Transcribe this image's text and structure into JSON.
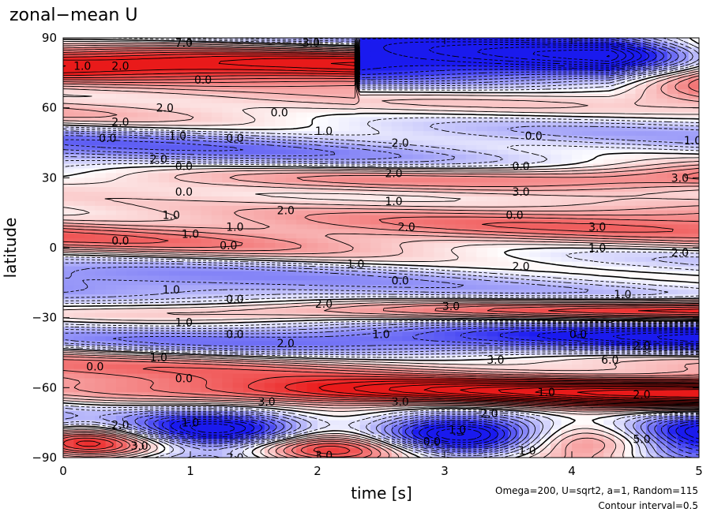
{
  "chart_data": {
    "type": "heatmap",
    "title": "zonal−mean U",
    "xlabel": "time [s]",
    "ylabel": "latitude",
    "xlim": [
      0,
      5
    ],
    "ylim": [
      -90,
      90
    ],
    "x_ticks": [
      "0",
      "1",
      "2",
      "3",
      "4",
      "5"
    ],
    "y_ticks": [
      "90",
      "60",
      "30",
      "0",
      "−30",
      "−60",
      "−90"
    ],
    "x_tick_values": [
      0,
      1,
      2,
      3,
      4,
      5
    ],
    "y_tick_values": [
      90,
      60,
      30,
      0,
      -30,
      -60,
      -90
    ],
    "annotation_params": "Omega=200, U=sqrt2, a=1, Random=115",
    "annotation_interval": "Contour interval=0.5",
    "contour_interval": 0.5,
    "colors": {
      "positive": "#e8202a",
      "negative": "#1a1aee",
      "zero": "#ffffff"
    },
    "contour_labels": [
      {
        "text": "1.0",
        "t": 0.15,
        "lat": 78
      },
      {
        "text": "2.0",
        "t": 0.45,
        "lat": 78
      },
      {
        "text": "7.0",
        "t": 0.95,
        "lat": 88
      },
      {
        "text": "3.0",
        "t": 1.95,
        "lat": 88
      },
      {
        "text": "0.0",
        "t": 1.1,
        "lat": 72
      },
      {
        "text": "2.0",
        "t": 0.45,
        "lat": 54
      },
      {
        "text": "2.0",
        "t": 0.8,
        "lat": 60
      },
      {
        "text": "0.0",
        "t": 1.7,
        "lat": 58
      },
      {
        "text": "0.0",
        "t": 0.35,
        "lat": 47
      },
      {
        "text": "1.0",
        "t": 0.9,
        "lat": 48
      },
      {
        "text": "0.0",
        "t": 1.35,
        "lat": 47
      },
      {
        "text": "1.0",
        "t": 2.05,
        "lat": 50
      },
      {
        "text": "2.0",
        "t": 2.65,
        "lat": 45
      },
      {
        "text": "0.0",
        "t": 3.7,
        "lat": 48
      },
      {
        "text": "1.0",
        "t": 4.95,
        "lat": 46
      },
      {
        "text": "2.0",
        "t": 0.75,
        "lat": 38
      },
      {
        "text": "0.0",
        "t": 0.95,
        "lat": 35
      },
      {
        "text": "2.0",
        "t": 2.6,
        "lat": 32
      },
      {
        "text": "0.0",
        "t": 3.6,
        "lat": 35
      },
      {
        "text": "3.0",
        "t": 4.85,
        "lat": 30
      },
      {
        "text": "0.0",
        "t": 0.95,
        "lat": 24
      },
      {
        "text": "1.0",
        "t": 2.6,
        "lat": 20
      },
      {
        "text": "3.0",
        "t": 3.6,
        "lat": 24
      },
      {
        "text": "1.0",
        "t": 0.85,
        "lat": 14
      },
      {
        "text": "2.0",
        "t": 1.75,
        "lat": 16
      },
      {
        "text": "0.0",
        "t": 3.55,
        "lat": 14
      },
      {
        "text": "1.0",
        "t": 1.0,
        "lat": 6
      },
      {
        "text": "1.0",
        "t": 1.35,
        "lat": 9
      },
      {
        "text": "2.0",
        "t": 2.7,
        "lat": 9
      },
      {
        "text": "3.0",
        "t": 4.2,
        "lat": 9
      },
      {
        "text": "0.0",
        "t": 0.45,
        "lat": 3
      },
      {
        "text": "0.0",
        "t": 1.3,
        "lat": 1
      },
      {
        "text": "1.0",
        "t": 4.2,
        "lat": 0
      },
      {
        "text": "2.0",
        "t": 4.85,
        "lat": -2
      },
      {
        "text": "1.0",
        "t": 2.3,
        "lat": -7
      },
      {
        "text": "2.0",
        "t": 3.6,
        "lat": -8
      },
      {
        "text": "0.0",
        "t": 2.65,
        "lat": -14
      },
      {
        "text": "1.0",
        "t": 0.85,
        "lat": -18
      },
      {
        "text": "0.0",
        "t": 1.35,
        "lat": -22
      },
      {
        "text": "2.0",
        "t": 2.05,
        "lat": -24
      },
      {
        "text": "3.0",
        "t": 3.05,
        "lat": -25
      },
      {
        "text": "1.0",
        "t": 4.4,
        "lat": -20
      },
      {
        "text": "1.0",
        "t": 0.95,
        "lat": -32
      },
      {
        "text": "0.0",
        "t": 1.35,
        "lat": -37
      },
      {
        "text": "2.0",
        "t": 1.75,
        "lat": -41
      },
      {
        "text": "1.0",
        "t": 2.5,
        "lat": -37
      },
      {
        "text": "0.0",
        "t": 4.05,
        "lat": -37
      },
      {
        "text": "2.0",
        "t": 4.55,
        "lat": -42
      },
      {
        "text": "0.0",
        "t": 0.25,
        "lat": -51
      },
      {
        "text": "1.0",
        "t": 0.75,
        "lat": -47
      },
      {
        "text": "3.0",
        "t": 3.4,
        "lat": -48
      },
      {
        "text": "6.0",
        "t": 4.3,
        "lat": -48
      },
      {
        "text": "0.0",
        "t": 0.95,
        "lat": -56
      },
      {
        "text": "3.0",
        "t": 1.6,
        "lat": -66
      },
      {
        "text": "3.0",
        "t": 2.65,
        "lat": -66
      },
      {
        "text": "1.0",
        "t": 3.8,
        "lat": -62
      },
      {
        "text": "2.0",
        "t": 3.35,
        "lat": -71
      },
      {
        "text": "2.0",
        "t": 4.55,
        "lat": -63
      },
      {
        "text": "2.0",
        "t": 0.45,
        "lat": -76
      },
      {
        "text": "1.0",
        "t": 1.0,
        "lat": -75
      },
      {
        "text": "1.0",
        "t": 3.1,
        "lat": -78
      },
      {
        "text": "0.0",
        "t": 2.9,
        "lat": -83
      },
      {
        "text": "3.0",
        "t": 0.6,
        "lat": -85
      },
      {
        "text": "2.0",
        "t": 1.35,
        "lat": -90
      },
      {
        "text": "3.0",
        "t": 2.05,
        "lat": -89
      },
      {
        "text": "1.0",
        "t": 3.65,
        "lat": -87
      },
      {
        "text": "5.0",
        "t": 4.55,
        "lat": -82
      }
    ]
  }
}
